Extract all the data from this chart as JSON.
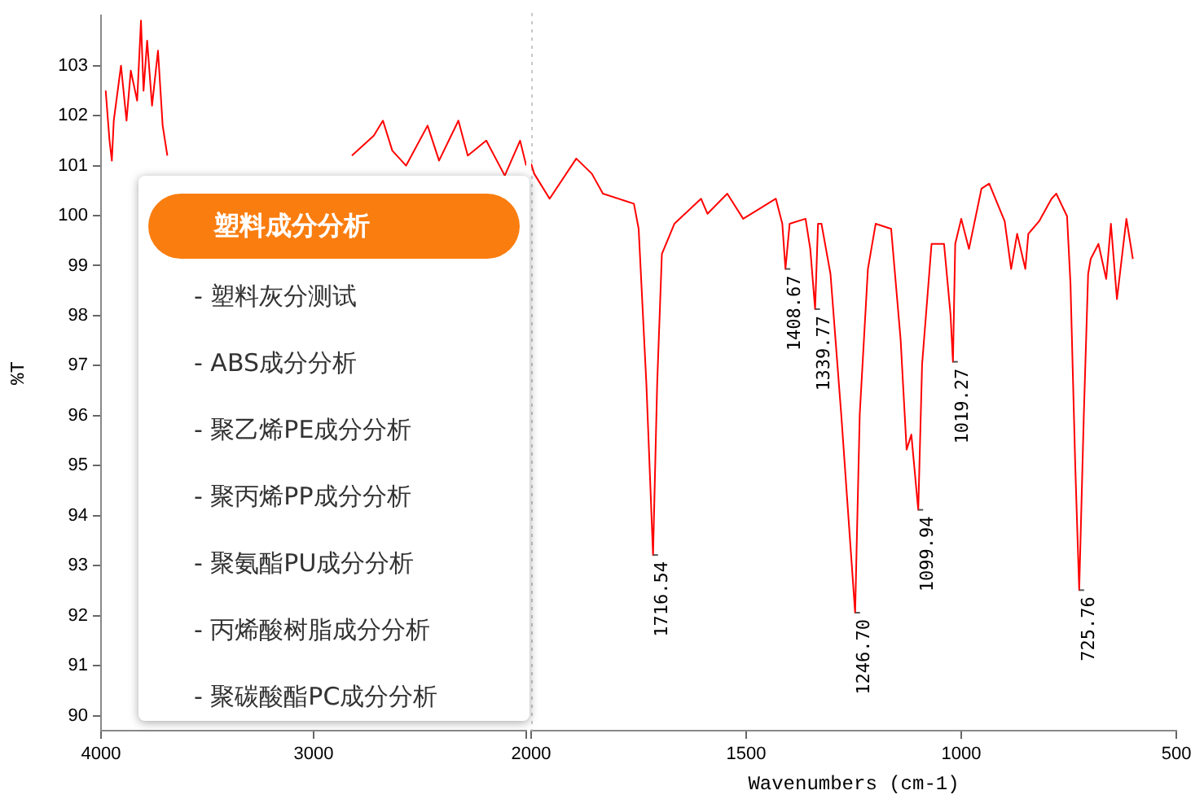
{
  "chart_data": [
    {
      "type": "line",
      "ylabel": "%T",
      "x": [
        3978,
        3960,
        3949,
        3940,
        3906,
        3880,
        3860,
        3830,
        3812,
        3800,
        3783,
        3760,
        3732,
        3710,
        3688,
        3652,
        3600,
        2855,
        2820,
        2717,
        2674,
        2630,
        2565,
        2464,
        2410,
        2319,
        2275,
        2188,
        2101,
        2029,
        2000
      ],
      "series": [
        {
          "color": "#ff0000",
          "values": [
            102.5,
            101.5,
            101.1,
            101.9,
            103.0,
            101.9,
            102.9,
            102.3,
            103.9,
            102.5,
            103.5,
            102.2,
            103.3,
            101.8,
            101.2,
            null,
            null,
            null,
            101.2,
            101.6,
            101.9,
            101.3,
            101.0,
            101.8,
            101.1,
            101.9,
            101.2,
            101.5,
            100.8,
            101.5,
            101.0
          ]
        }
      ],
      "xlim": [
        4000,
        2000
      ],
      "xticks": [
        4000,
        3000,
        {
          "value": 2000,
          "label": null
        }
      ],
      "ylim": [
        89.7,
        104
      ],
      "yticks": [
        90,
        91,
        92,
        93,
        94,
        95,
        96,
        97,
        98,
        99,
        100,
        101,
        102,
        103
      ],
      "legend": false,
      "grid": false
    },
    {
      "type": "line",
      "xlabel": "Wavenumbers (cm-1)",
      "x": [
        2000,
        1993,
        1957,
        1895,
        1859,
        1833,
        1761,
        1750,
        1732,
        1716.54,
        1707,
        1696,
        1667,
        1605,
        1590,
        1544,
        1507,
        1431,
        1416,
        1408.67,
        1399,
        1362,
        1351,
        1339.77,
        1333,
        1325,
        1304,
        1279,
        1246.7,
        1236,
        1217,
        1199,
        1163,
        1141,
        1127,
        1116,
        1099.94,
        1091,
        1069,
        1040,
        1025,
        1019.27,
        1014,
        1000,
        982,
        953,
        935,
        899,
        884,
        870,
        851,
        844,
        819,
        790,
        779,
        754,
        746,
        735,
        725.76,
        715,
        705,
        699,
        681,
        663,
        652,
        638,
        616,
        601
      ],
      "series": [
        {
          "color": "#ff0000",
          "values": [
            101.0,
            100.8,
            100.3,
            101.1,
            100.8,
            100.4,
            100.2,
            99.7,
            96.6,
            93.2,
            96.6,
            99.2,
            99.8,
            100.3,
            100.0,
            100.4,
            99.9,
            100.3,
            99.8,
            98.9,
            99.8,
            99.9,
            99.3,
            98.1,
            99.8,
            99.8,
            98.8,
            96.0,
            92.05,
            96.0,
            98.9,
            99.8,
            99.7,
            97.5,
            95.3,
            95.6,
            94.1,
            97.0,
            99.4,
            99.4,
            98.0,
            97.05,
            99.4,
            99.9,
            99.3,
            100.5,
            100.6,
            99.85,
            98.9,
            99.6,
            98.9,
            99.6,
            99.85,
            100.3,
            100.4,
            99.95,
            98.6,
            95.0,
            92.5,
            96.0,
            98.8,
            99.1,
            99.4,
            98.7,
            99.8,
            98.3,
            99.9,
            99.1
          ]
        }
      ],
      "xlim": [
        2000,
        500
      ],
      "xticks": [
        2000,
        1500,
        1000,
        500
      ],
      "ylim": [
        89.7,
        104
      ],
      "yticks": [
        90,
        91,
        92,
        93,
        94,
        95,
        96,
        97,
        98,
        99,
        100,
        101,
        102,
        103
      ],
      "tick_labels": "x",
      "ref_lines": [
        {
          "axis": "x",
          "value": 2000,
          "color": "#c8c8c8",
          "line_style": "dotted"
        }
      ],
      "annotations": [
        {
          "text": "1716.54",
          "x": 1716.54,
          "y": 93.2
        },
        {
          "text": "1408.67",
          "x": 1408.67,
          "y": 98.9
        },
        {
          "text": "1339.77",
          "x": 1339.77,
          "y": 98.1
        },
        {
          "text": "1246.70",
          "x": 1246.7,
          "y": 92.05
        },
        {
          "text": "1099.94",
          "x": 1099.94,
          "y": 94.1
        },
        {
          "text": "1019.27",
          "x": 1019.27,
          "y": 97.05
        },
        {
          "text": "725.76",
          "x": 725.76,
          "y": 92.5
        }
      ],
      "legend": false,
      "grid": false
    },
    {
      "type": "other",
      "annotations": [
        "塑料成分分析",
        "- 塑料灰分测试",
        "- ABS成分分析",
        "- 聚乙烯PE成分分析",
        "- 聚丙烯PP成分分析",
        "- 聚氨酯PU成分分析",
        "- 丙烯酸树脂成分分析",
        "- 聚碳酸酯PC成分分析"
      ]
    }
  ]
}
